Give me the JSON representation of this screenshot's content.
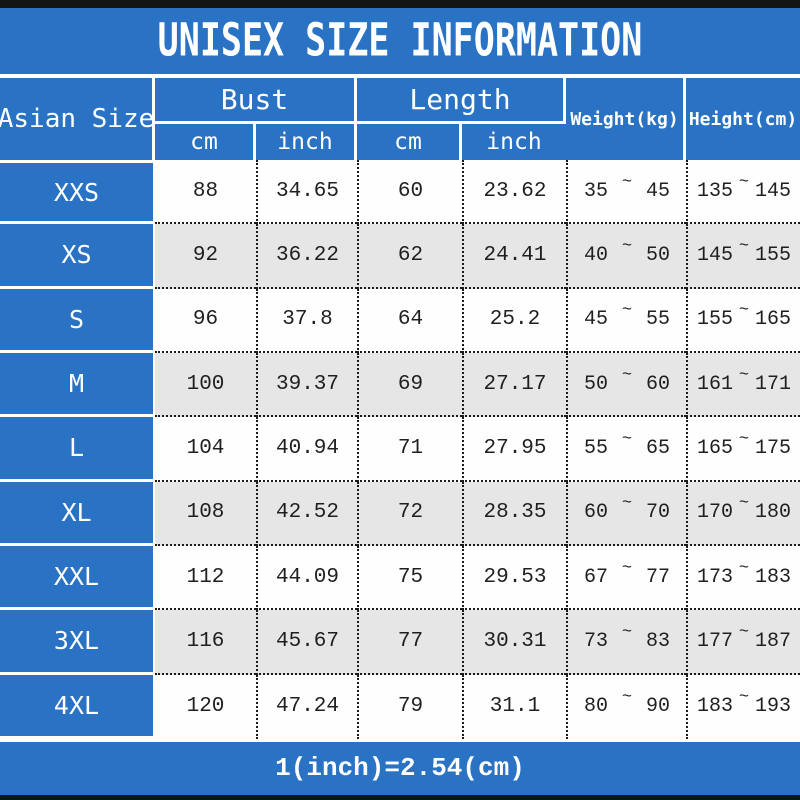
{
  "title": "UNISEX SIZE INFORMATION",
  "footer_note": "1(inch)=2.54(cm)",
  "tilde": "~",
  "colors": {
    "blue": "#2a72c4",
    "row_white": "#fefefe",
    "row_gray": "#e6e6e6",
    "bar_black": "#141414",
    "text_dark": "#1f1f1f",
    "text_white": "#ffffff"
  },
  "chart_data": {
    "type": "table",
    "title": "UNISEX SIZE INFORMATION",
    "header": {
      "size_col": "Asian Size",
      "bust_group": "Bust",
      "length_group": "Length",
      "cm": "cm",
      "inch": "inch",
      "weight": "Weight(kg)",
      "height": "Height(cm)"
    },
    "rows": [
      {
        "size": "XXS",
        "bust_cm": "88",
        "bust_inch": "34.65",
        "length_cm": "60",
        "length_inch": "23.62",
        "weight_min": "35",
        "weight_max": "45",
        "height_min": "135",
        "height_max": "145"
      },
      {
        "size": "XS",
        "bust_cm": "92",
        "bust_inch": "36.22",
        "length_cm": "62",
        "length_inch": "24.41",
        "weight_min": "40",
        "weight_max": "50",
        "height_min": "145",
        "height_max": "155"
      },
      {
        "size": "S",
        "bust_cm": "96",
        "bust_inch": "37.8",
        "length_cm": "64",
        "length_inch": "25.2",
        "weight_min": "45",
        "weight_max": "55",
        "height_min": "155",
        "height_max": "165"
      },
      {
        "size": "M",
        "bust_cm": "100",
        "bust_inch": "39.37",
        "length_cm": "69",
        "length_inch": "27.17",
        "weight_min": "50",
        "weight_max": "60",
        "height_min": "161",
        "height_max": "171"
      },
      {
        "size": "L",
        "bust_cm": "104",
        "bust_inch": "40.94",
        "length_cm": "71",
        "length_inch": "27.95",
        "weight_min": "55",
        "weight_max": "65",
        "height_min": "165",
        "height_max": "175"
      },
      {
        "size": "XL",
        "bust_cm": "108",
        "bust_inch": "42.52",
        "length_cm": "72",
        "length_inch": "28.35",
        "weight_min": "60",
        "weight_max": "70",
        "height_min": "170",
        "height_max": "180"
      },
      {
        "size": "XXL",
        "bust_cm": "112",
        "bust_inch": "44.09",
        "length_cm": "75",
        "length_inch": "29.53",
        "weight_min": "67",
        "weight_max": "77",
        "height_min": "173",
        "height_max": "183"
      },
      {
        "size": "3XL",
        "bust_cm": "116",
        "bust_inch": "45.67",
        "length_cm": "77",
        "length_inch": "30.31",
        "weight_min": "73",
        "weight_max": "83",
        "height_min": "177",
        "height_max": "187"
      },
      {
        "size": "4XL",
        "bust_cm": "120",
        "bust_inch": "47.24",
        "length_cm": "79",
        "length_inch": "31.1",
        "weight_min": "80",
        "weight_max": "90",
        "height_min": "183",
        "height_max": "193"
      }
    ]
  }
}
